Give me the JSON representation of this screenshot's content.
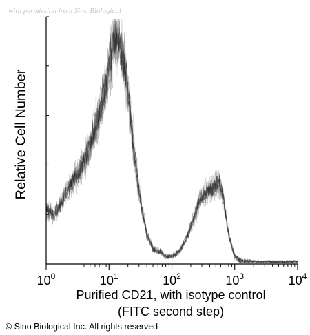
{
  "watermark": "with permission from Sino Biological",
  "copyright": "© Sino Biological Inc. All rights reserved",
  "chart_data": {
    "type": "area",
    "title": "",
    "xlabel": "Purified CD21, with isotype control",
    "xlabel_line2": "(FITC second step)",
    "ylabel": "Relative Cell Number",
    "x_scale": "log",
    "xlim": [
      1,
      10000
    ],
    "ylim": [
      0,
      1
    ],
    "grid": false,
    "colors": {
      "histogram": "#1a1a1a",
      "axis": "#000000"
    },
    "x_ticks": [
      {
        "value": 1,
        "base": "10",
        "exp": "0"
      },
      {
        "value": 10,
        "base": "10",
        "exp": "1"
      },
      {
        "value": 100,
        "base": "10",
        "exp": "2"
      },
      {
        "value": 1000,
        "base": "10",
        "exp": "3"
      },
      {
        "value": 10000,
        "base": "10",
        "exp": "4"
      }
    ],
    "series": [
      {
        "x": [
          1,
          1.3,
          1.7,
          2.2,
          2.8,
          3.5,
          4.5,
          5.5,
          7,
          8.5,
          10,
          12,
          14,
          17,
          20,
          25,
          32,
          40,
          50,
          65,
          80,
          100,
          130,
          170,
          220,
          280,
          350,
          450,
          550,
          650,
          800,
          1000,
          1300,
          1700,
          2500,
          4000,
          10000
        ],
        "y": [
          0.22,
          0.2,
          0.24,
          0.3,
          0.34,
          0.38,
          0.44,
          0.52,
          0.6,
          0.7,
          0.8,
          0.92,
          0.9,
          0.83,
          0.7,
          0.45,
          0.25,
          0.12,
          0.06,
          0.05,
          0.03,
          0.03,
          0.05,
          0.1,
          0.18,
          0.26,
          0.29,
          0.3,
          0.34,
          0.28,
          0.12,
          0.03,
          0.01,
          0.01,
          0.0,
          0.0,
          0.0
        ]
      }
    ]
  }
}
